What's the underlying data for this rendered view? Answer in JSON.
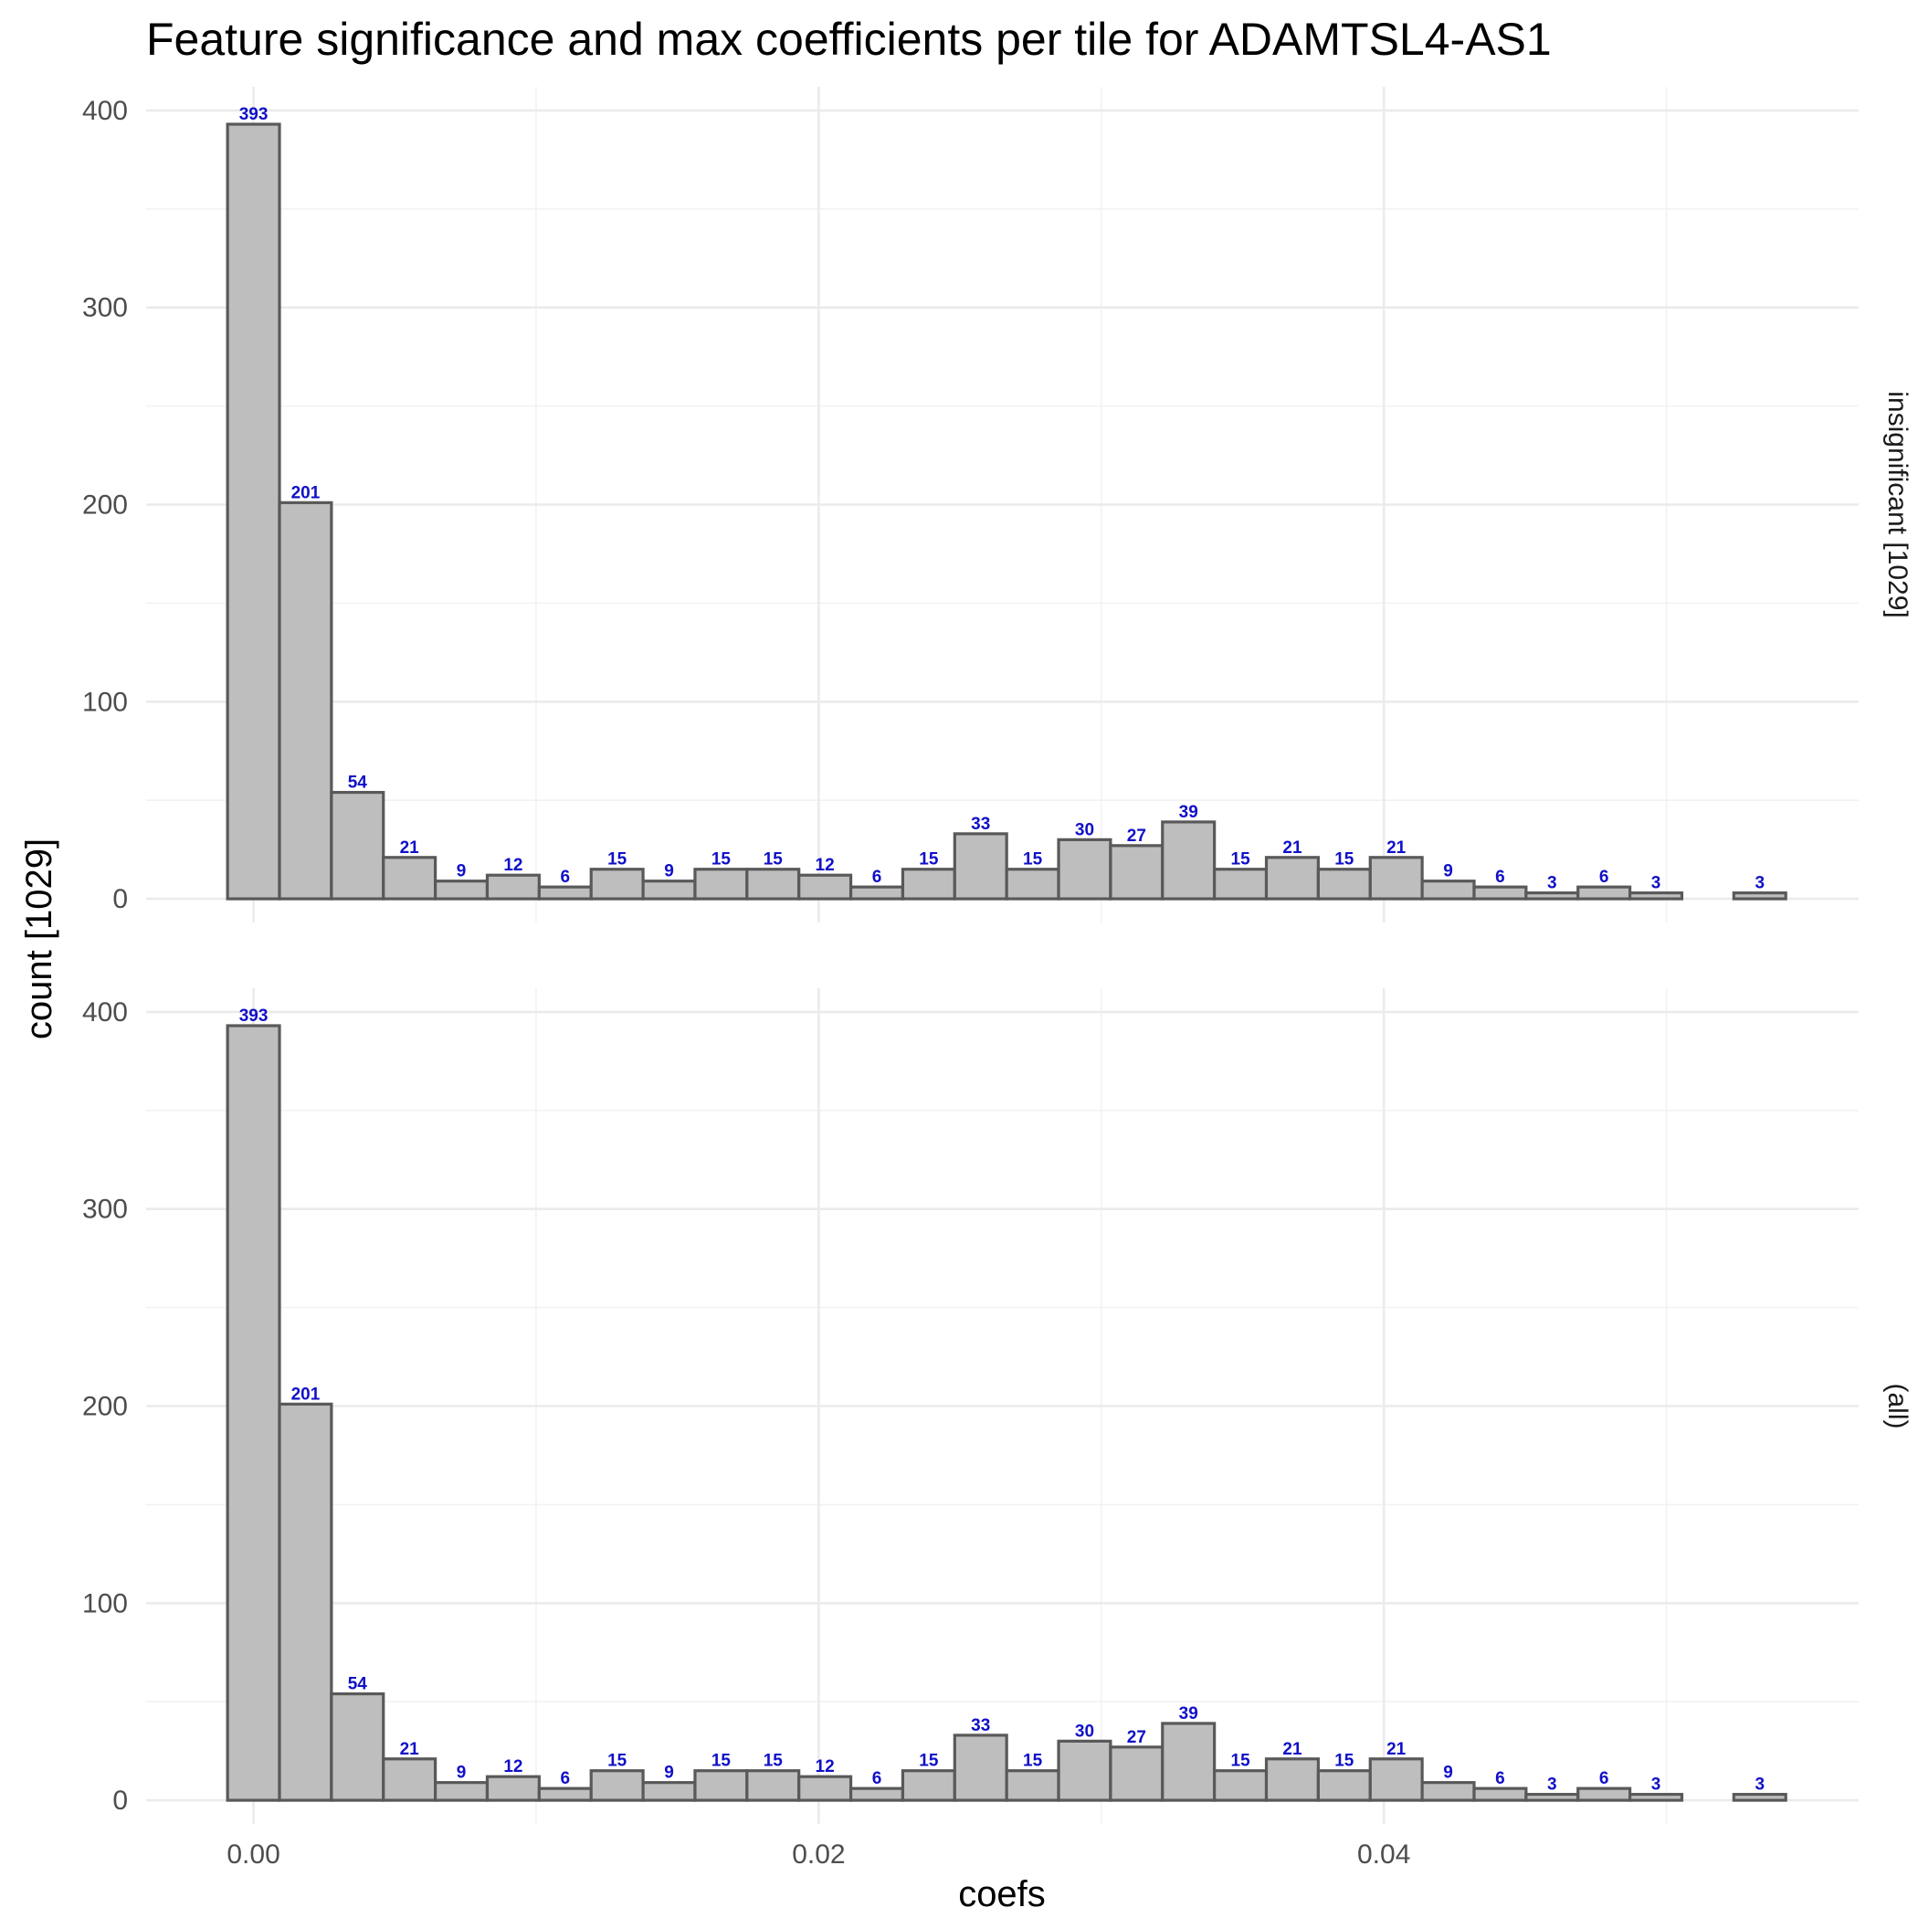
{
  "chart_data": {
    "type": "bar",
    "title": "Feature significance and max coefficients per tile for ADAMTSL4-AS1",
    "xlabel": "coefs",
    "ylabel": "count [1029]",
    "xlim": [
      -0.0038,
      0.0568
    ],
    "ylim": [
      -12,
      412
    ],
    "x_ticks": [
      0.0,
      0.02,
      0.04
    ],
    "x_tick_labels": [
      "0.00",
      "0.02",
      "0.04"
    ],
    "y_ticks": [
      0,
      100,
      200,
      300,
      400
    ],
    "y_tick_labels": [
      "0",
      "100",
      "200",
      "300",
      "400"
    ],
    "grid": true,
    "bin_width": 0.001838,
    "bin_start": -0.000919,
    "facets": [
      {
        "label": "insignificant [1029]",
        "values": [
          393,
          201,
          54,
          21,
          9,
          12,
          6,
          15,
          9,
          15,
          15,
          12,
          6,
          15,
          33,
          15,
          30,
          27,
          39,
          15,
          21,
          15,
          21,
          9,
          6,
          3,
          6,
          3,
          0,
          3
        ]
      },
      {
        "label": "(all)",
        "values": [
          393,
          201,
          54,
          21,
          9,
          12,
          6,
          15,
          9,
          15,
          15,
          12,
          6,
          15,
          33,
          15,
          30,
          27,
          39,
          15,
          21,
          15,
          21,
          9,
          6,
          3,
          6,
          3,
          0,
          3
        ]
      }
    ]
  }
}
